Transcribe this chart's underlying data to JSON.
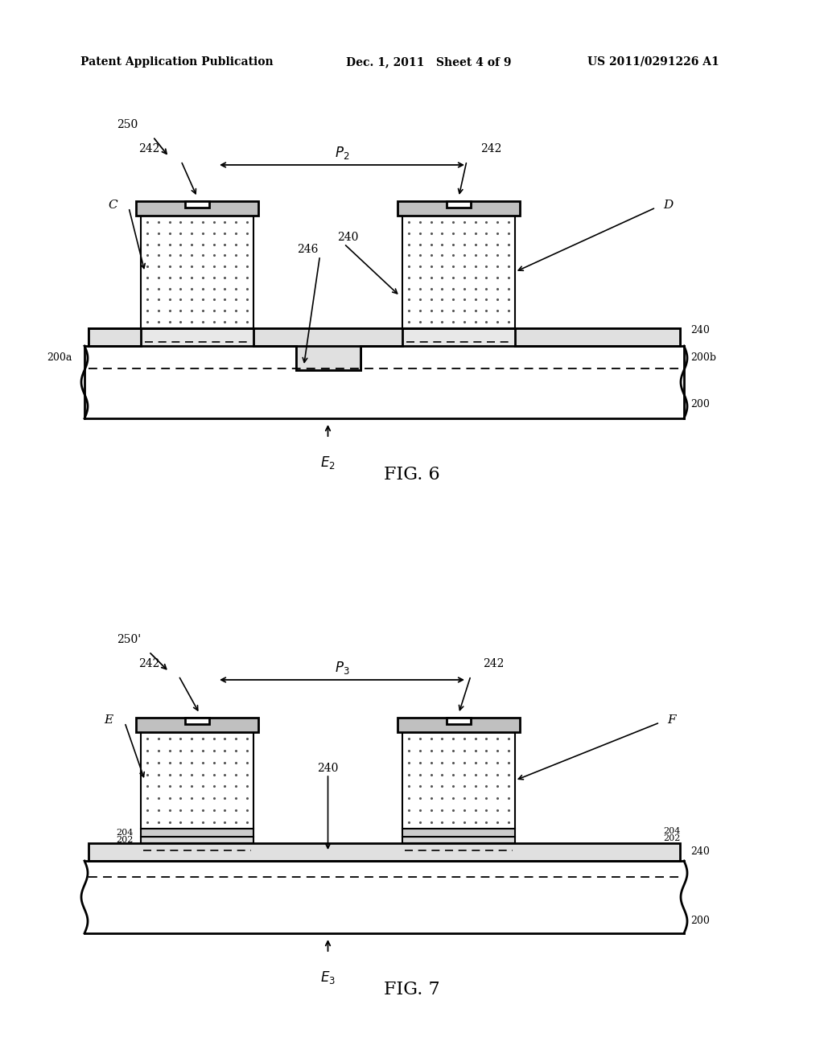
{
  "bg_color": "#ffffff",
  "header_left": "Patent Application Publication",
  "header_mid": "Dec. 1, 2011   Sheet 4 of 9",
  "header_right": "US 2011/0291226 A1",
  "fig6_label": "FIG. 6",
  "fig7_label": "FIG. 7",
  "fig6_title": "250",
  "fig7_title": "250'",
  "text_color": "#000000",
  "dot_color": "#aaaaaa",
  "line_color": "#000000",
  "fill_color": "#d0d0d0"
}
